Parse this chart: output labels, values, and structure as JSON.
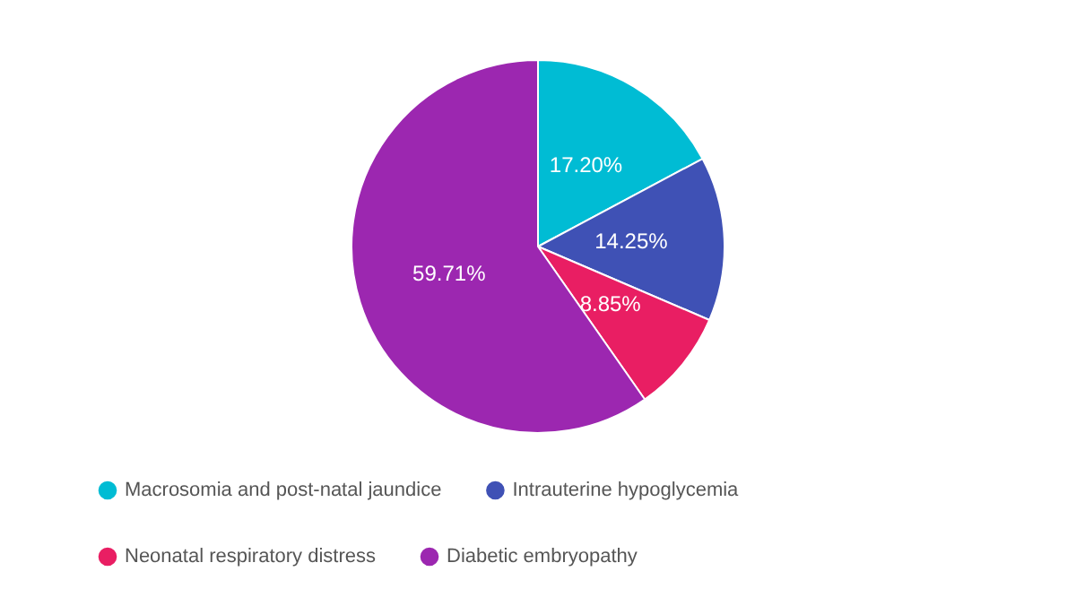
{
  "chart_data": {
    "type": "pie",
    "categories": [
      "Macrosomia and post-natal jaundice",
      "Intrauterine hypoglycemia",
      "Neonatal respiratory distress",
      "Diabetic embryopathy"
    ],
    "values": [
      17.2,
      14.25,
      8.85,
      59.71
    ],
    "colors": [
      "#00bcd4",
      "#3f51b5",
      "#e91e63",
      "#9c27b0"
    ],
    "value_labels": [
      "17.20%",
      "14.25%",
      "8.85%",
      "59.71%"
    ],
    "legend": "bottom"
  }
}
